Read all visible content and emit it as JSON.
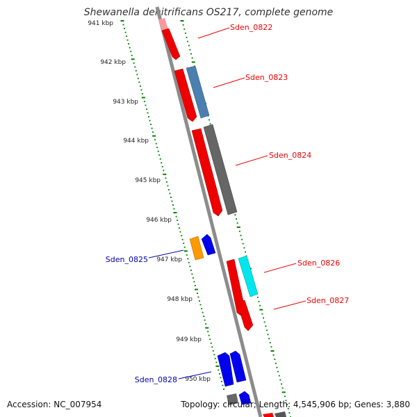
{
  "title": "Shewanella denitrificans OS217, complete genome",
  "footer": {
    "accession": "Accession: NC_007954",
    "summary": "Topology: circular; Length: 4,545,906 bp; Genes: 3,880"
  },
  "scale_labels": [
    "941 kbp",
    "942 kbp",
    "943 kbp",
    "944 kbp",
    "945 kbp",
    "946 kbp",
    "947 kbp",
    "948 kbp",
    "949 kbp",
    "950 kbp"
  ],
  "gene_labels": [
    {
      "id": "Sden_0822",
      "strand": "forward"
    },
    {
      "id": "Sden_0823",
      "strand": "forward"
    },
    {
      "id": "Sden_0824",
      "strand": "forward"
    },
    {
      "id": "Sden_0825",
      "strand": "reverse"
    },
    {
      "id": "Sden_0826",
      "strand": "forward"
    },
    {
      "id": "Sden_0827",
      "strand": "forward"
    },
    {
      "id": "Sden_0828",
      "strand": "reverse"
    }
  ],
  "colors": {
    "forward_label": "#ee0000",
    "reverse_label": "#0000aa",
    "backbone": "#888888",
    "tick": "#008000"
  }
}
